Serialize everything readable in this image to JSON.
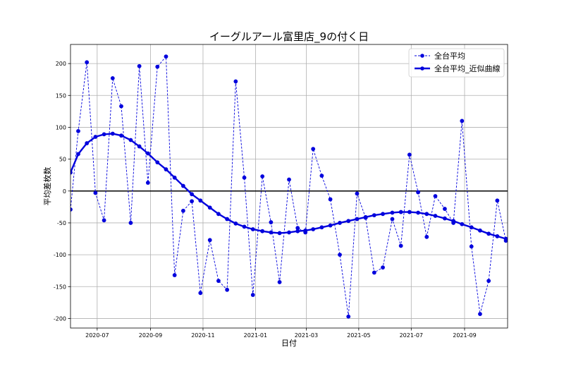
{
  "chart_data": {
    "type": "line",
    "title": "イーグルアール富里店_9の付く日",
    "xlabel": "日付",
    "ylabel": "平均差枚数",
    "xlim": [
      "2020-05-31",
      "2021-10-21"
    ],
    "ylim": [
      -215,
      230
    ],
    "x_ticks": [
      "2020-07",
      "2020-09",
      "2020-11",
      "2021-01",
      "2021-03",
      "2021-05",
      "2021-07",
      "2021-09"
    ],
    "y_ticks": [
      -200,
      -150,
      -100,
      -50,
      0,
      50,
      100,
      150,
      200
    ],
    "grid": true,
    "reference_line_y": 0,
    "legend_position": "top-right",
    "colors": {
      "series": "#0000dd",
      "zero_line": "#000000",
      "grid": "#b0b0b0"
    },
    "series": [
      {
        "name": "全台平均",
        "style": "dashed",
        "x": [
          "2020-05-31",
          "2020-06-09",
          "2020-06-19",
          "2020-06-29",
          "2020-07-09",
          "2020-07-19",
          "2020-07-29",
          "2020-08-09",
          "2020-08-19",
          "2020-08-29",
          "2020-09-09",
          "2020-09-19",
          "2020-09-29",
          "2020-10-09",
          "2020-10-19",
          "2020-10-29",
          "2020-11-09",
          "2020-11-19",
          "2020-11-29",
          "2020-12-09",
          "2020-12-19",
          "2020-12-29",
          "2021-01-09",
          "2021-01-19",
          "2021-01-29",
          "2021-02-09",
          "2021-02-19",
          "2021-02-28",
          "2021-03-09",
          "2021-03-19",
          "2021-03-29",
          "2021-04-09",
          "2021-04-19",
          "2021-04-29",
          "2021-05-09",
          "2021-05-19",
          "2021-05-29",
          "2021-06-09",
          "2021-06-19",
          "2021-06-29",
          "2021-07-09",
          "2021-07-19",
          "2021-07-29",
          "2021-08-09",
          "2021-08-19",
          "2021-08-29",
          "2021-09-09",
          "2021-09-19",
          "2021-09-29",
          "2021-10-09",
          "2021-10-19"
        ],
        "y": [
          -29,
          94,
          202,
          -3,
          -46,
          177,
          133,
          -50,
          196,
          13,
          195,
          211,
          -132,
          -31,
          -16,
          -160,
          -77,
          -141,
          -155,
          172,
          21,
          -163,
          23,
          -49,
          -143,
          18,
          -58,
          -65,
          66,
          24,
          -13,
          -100,
          -197,
          -4,
          -42,
          -128,
          -120,
          -44,
          -86,
          57,
          -2,
          -72,
          -8,
          -28,
          -50,
          110,
          -87,
          -193,
          -141,
          -15,
          -78
        ]
      },
      {
        "name": "全台平均_近似曲線",
        "style": "solid",
        "x": [
          "2020-05-31",
          "2020-06-09",
          "2020-06-19",
          "2020-06-29",
          "2020-07-09",
          "2020-07-19",
          "2020-07-29",
          "2020-08-09",
          "2020-08-19",
          "2020-08-29",
          "2020-09-09",
          "2020-09-19",
          "2020-09-29",
          "2020-10-09",
          "2020-10-19",
          "2020-10-29",
          "2020-11-09",
          "2020-11-19",
          "2020-11-29",
          "2020-12-09",
          "2020-12-19",
          "2020-12-29",
          "2021-01-09",
          "2021-01-19",
          "2021-01-29",
          "2021-02-09",
          "2021-02-19",
          "2021-02-28",
          "2021-03-09",
          "2021-03-19",
          "2021-03-29",
          "2021-04-09",
          "2021-04-19",
          "2021-04-29",
          "2021-05-09",
          "2021-05-19",
          "2021-05-29",
          "2021-06-09",
          "2021-06-19",
          "2021-06-29",
          "2021-07-09",
          "2021-07-19",
          "2021-07-29",
          "2021-08-09",
          "2021-08-19",
          "2021-08-29",
          "2021-09-09",
          "2021-09-19",
          "2021-09-29",
          "2021-10-09",
          "2021-10-19"
        ],
        "y": [
          29,
          58,
          75,
          85,
          89,
          90,
          87,
          80,
          70,
          59,
          45,
          34,
          21,
          8,
          -5,
          -15,
          -26,
          -36,
          -44,
          -51,
          -56,
          -60,
          -63,
          -65,
          -66,
          -65,
          -63,
          -62,
          -60,
          -57,
          -54,
          -50,
          -47,
          -44,
          -41,
          -38,
          -36,
          -34,
          -33,
          -33,
          -34,
          -36,
          -39,
          -43,
          -47,
          -52,
          -57,
          -62,
          -67,
          -71,
          -75
        ]
      }
    ]
  }
}
